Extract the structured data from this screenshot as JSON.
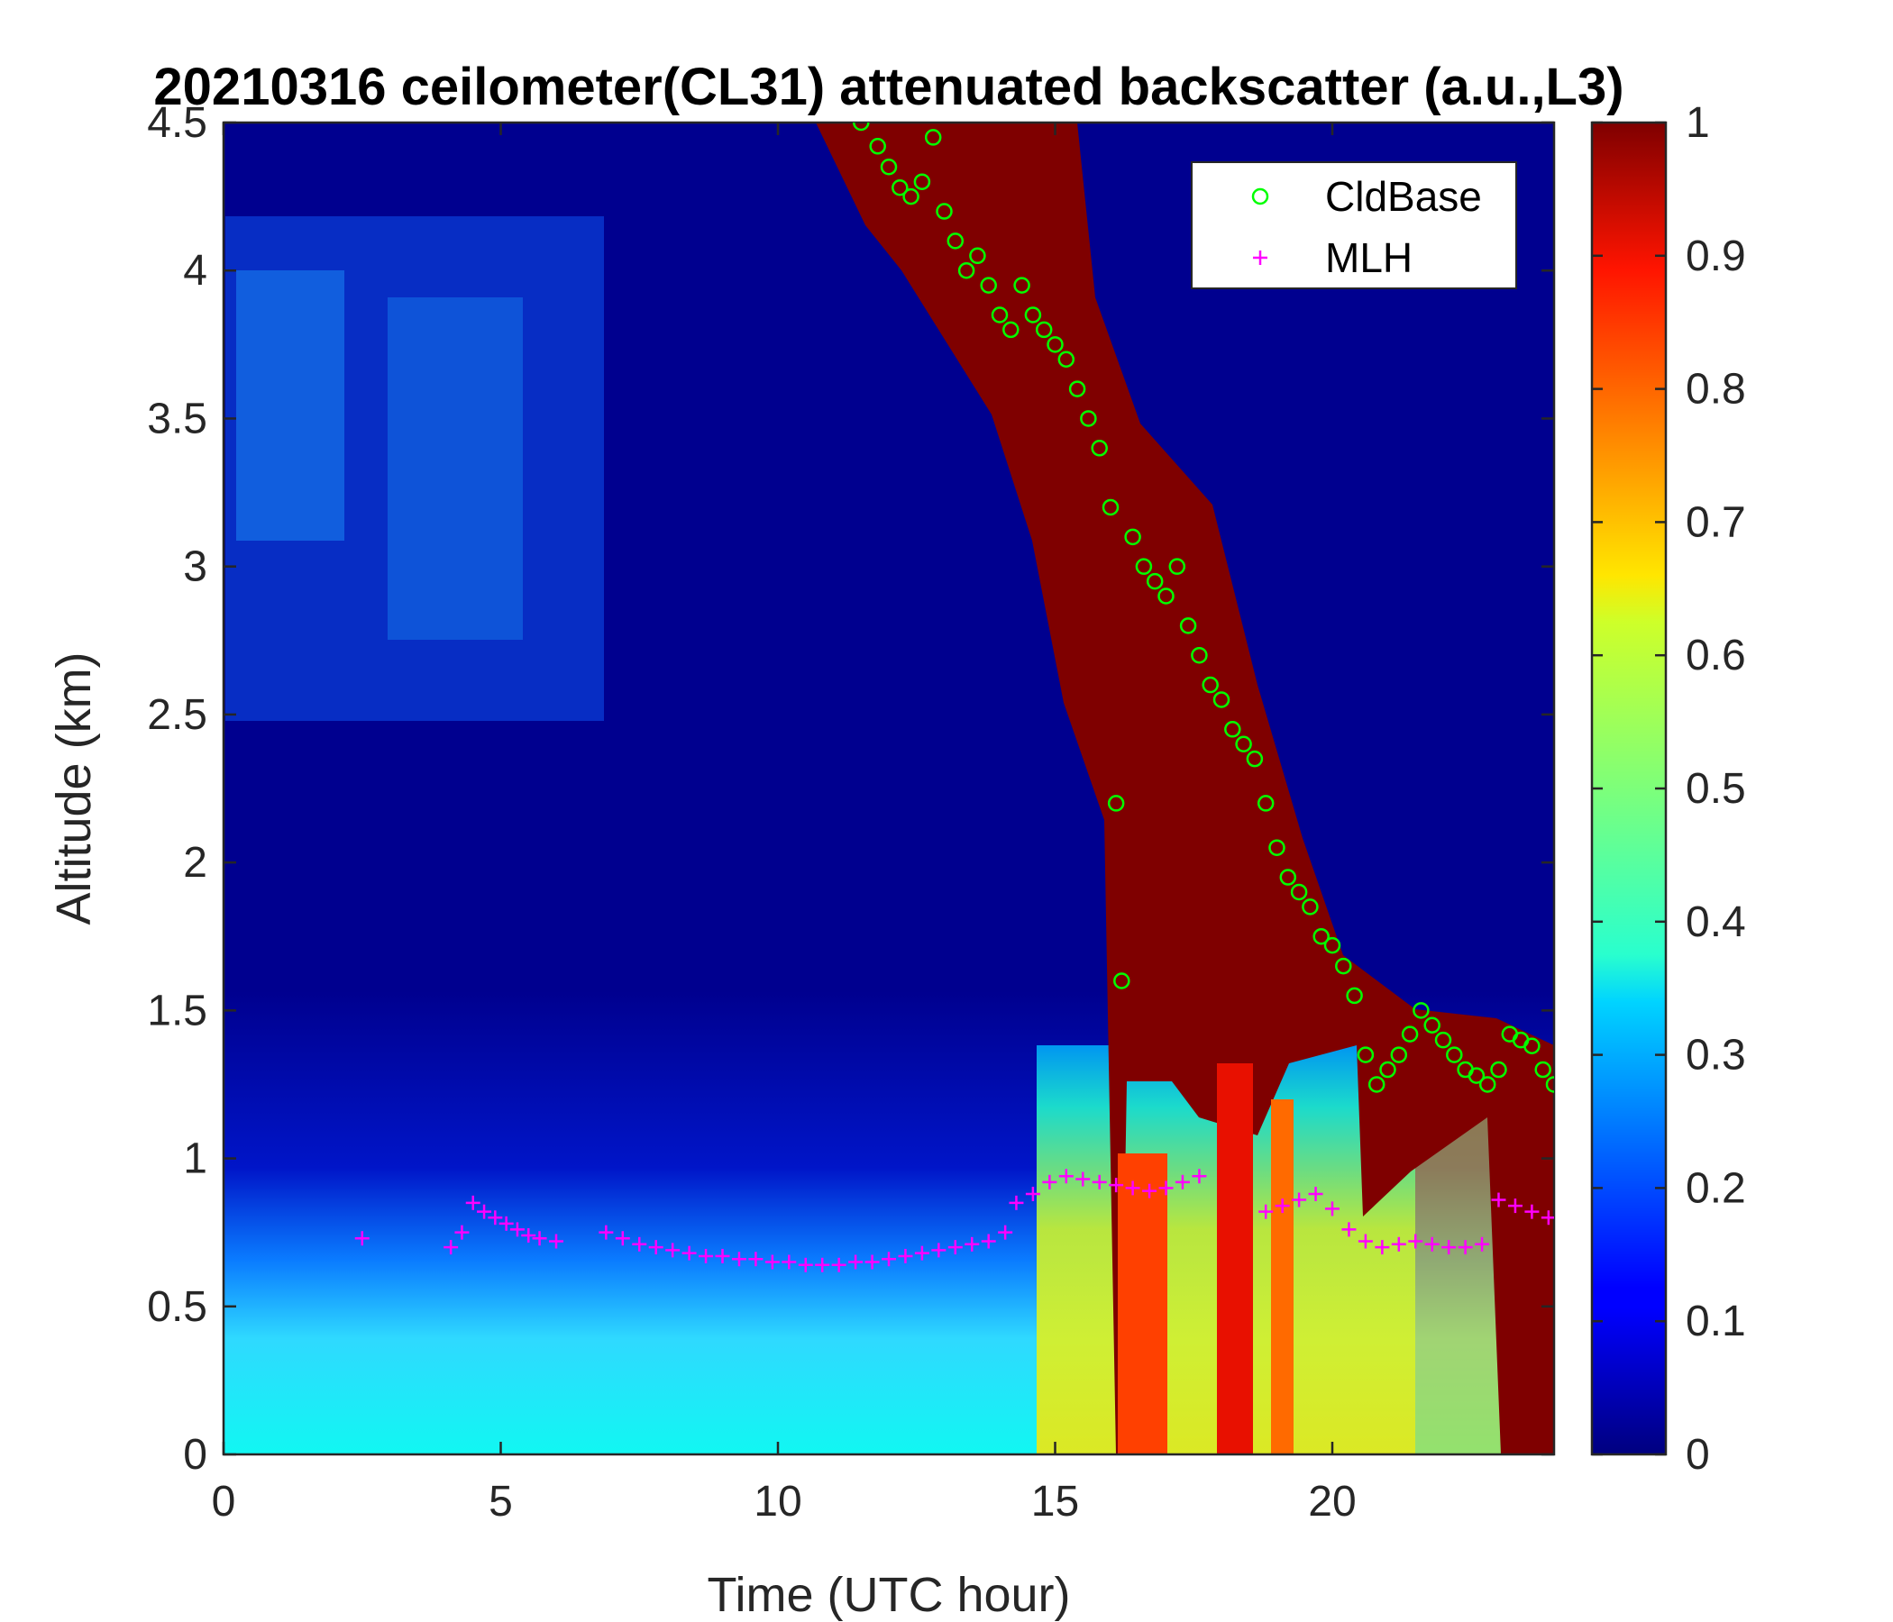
{
  "chart_data": {
    "type": "heatmap",
    "title": "20210316 ceilometer(CL31) attenuated backscatter (a.u.,L3)",
    "xlabel": "Time (UTC hour)",
    "ylabel": "Altitude (km)",
    "xlim": [
      0,
      24
    ],
    "ylim": [
      0,
      4.5
    ],
    "x_ticks": [
      "0",
      "5",
      "10",
      "15",
      "20"
    ],
    "y_ticks": [
      "0",
      "0.5",
      "1",
      "1.5",
      "2",
      "2.5",
      "3",
      "3.5",
      "4",
      "4.5"
    ],
    "colorbar": {
      "colormap": "jet",
      "range": [
        0,
        1
      ],
      "ticks": [
        "0",
        "0.1",
        "0.2",
        "0.3",
        "0.4",
        "0.5",
        "0.6",
        "0.7",
        "0.8",
        "0.9",
        "1"
      ]
    },
    "legend": {
      "position": "top-right",
      "entries": [
        {
          "label": "CldBase",
          "marker": "circle",
          "color": "#00ff00"
        },
        {
          "label": "MLH",
          "marker": "plus",
          "color": "#ff00ff"
        }
      ]
    },
    "series": [
      {
        "name": "CldBase",
        "marker": "circle",
        "color": "#00ff00",
        "x": [
          11.5,
          11.8,
          12.0,
          12.2,
          12.4,
          12.6,
          12.8,
          13.0,
          13.2,
          13.4,
          13.6,
          13.8,
          14.0,
          14.2,
          14.4,
          14.6,
          14.8,
          15.0,
          15.2,
          15.4,
          15.6,
          15.8,
          16.0,
          16.1,
          16.2,
          16.4,
          16.6,
          16.8,
          17.0,
          17.2,
          17.4,
          17.6,
          17.8,
          18.0,
          18.2,
          18.4,
          18.6,
          18.8,
          19.0,
          19.2,
          19.4,
          19.6,
          19.8,
          20.0,
          20.2,
          20.4,
          20.6,
          20.8,
          21.0,
          21.2,
          21.4,
          21.6,
          21.8,
          22.0,
          22.2,
          22.4,
          22.6,
          22.8,
          23.0,
          23.2,
          23.4,
          23.6,
          23.8,
          24.0
        ],
        "y": [
          4.5,
          4.42,
          4.35,
          4.28,
          4.25,
          4.3,
          4.45,
          4.2,
          4.1,
          4.0,
          4.05,
          3.95,
          3.85,
          3.8,
          3.95,
          3.85,
          3.8,
          3.75,
          3.7,
          3.6,
          3.5,
          3.4,
          3.2,
          2.2,
          1.6,
          3.1,
          3.0,
          2.95,
          2.9,
          3.0,
          2.8,
          2.7,
          2.6,
          2.55,
          2.45,
          2.4,
          2.35,
          2.2,
          2.05,
          1.95,
          1.9,
          1.85,
          1.75,
          1.72,
          1.65,
          1.55,
          1.35,
          1.25,
          1.3,
          1.35,
          1.42,
          1.5,
          1.45,
          1.4,
          1.35,
          1.3,
          1.28,
          1.25,
          1.3,
          1.42,
          1.4,
          1.38,
          1.3,
          1.25
        ]
      },
      {
        "name": "MLH",
        "marker": "plus",
        "color": "#ff00ff",
        "x": [
          2.5,
          4.1,
          4.3,
          4.5,
          4.7,
          4.9,
          5.1,
          5.3,
          5.5,
          5.7,
          6.0,
          6.9,
          7.2,
          7.5,
          7.8,
          8.1,
          8.4,
          8.7,
          9.0,
          9.3,
          9.6,
          9.9,
          10.2,
          10.5,
          10.8,
          11.1,
          11.4,
          11.7,
          12.0,
          12.3,
          12.6,
          12.9,
          13.2,
          13.5,
          13.8,
          14.1,
          14.3,
          14.6,
          14.9,
          15.2,
          15.5,
          15.8,
          16.1,
          16.4,
          16.7,
          17.0,
          17.3,
          17.6,
          18.8,
          19.1,
          19.4,
          19.7,
          20.0,
          20.3,
          20.6,
          20.9,
          21.2,
          21.5,
          21.8,
          22.1,
          22.4,
          22.7,
          23.0,
          23.3,
          23.6,
          23.9
        ],
        "y": [
          0.73,
          0.7,
          0.75,
          0.85,
          0.82,
          0.8,
          0.78,
          0.76,
          0.74,
          0.73,
          0.72,
          0.75,
          0.73,
          0.71,
          0.7,
          0.69,
          0.68,
          0.67,
          0.67,
          0.66,
          0.66,
          0.65,
          0.65,
          0.64,
          0.64,
          0.64,
          0.65,
          0.65,
          0.66,
          0.67,
          0.68,
          0.69,
          0.7,
          0.71,
          0.72,
          0.75,
          0.85,
          0.88,
          0.92,
          0.94,
          0.93,
          0.92,
          0.91,
          0.9,
          0.89,
          0.9,
          0.92,
          0.94,
          0.82,
          0.84,
          0.86,
          0.88,
          0.83,
          0.76,
          0.72,
          0.7,
          0.71,
          0.72,
          0.71,
          0.7,
          0.7,
          0.71,
          0.86,
          0.84,
          0.82,
          0.8
        ]
      }
    ]
  }
}
